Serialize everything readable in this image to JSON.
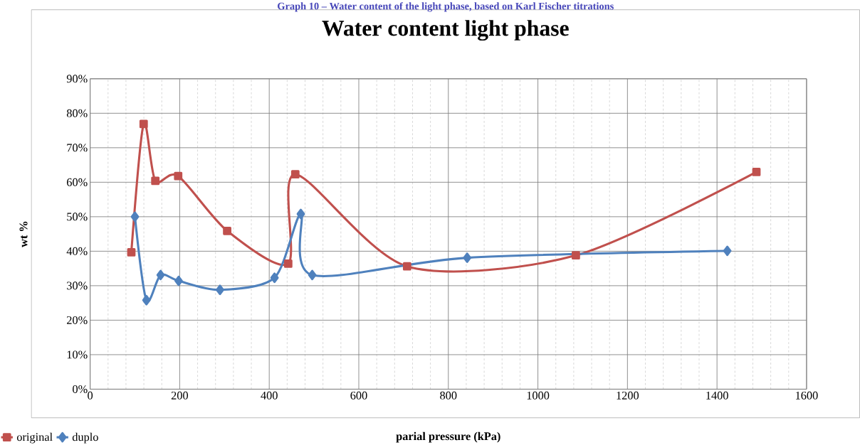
{
  "chart_data": {
    "type": "line",
    "title": "Water content light phase",
    "subtitle": "Graph 10 – Water content of the light phase, based on Karl Fischer titrations",
    "xlabel": "parial pressure (kPa)",
    "ylabel": "wt %",
    "series": [
      {
        "name": "original",
        "color": "#c0504d",
        "marker": "square",
        "x": [
          92,
          119.5,
          145.6,
          196.6,
          306,
          442.4,
          458.2,
          707.9,
          1084.8,
          1488
        ],
        "values": [
          39.7,
          76.9,
          60.4,
          61.8,
          45.9,
          36.4,
          62.3,
          35.6,
          38.8,
          63.0
        ]
      },
      {
        "name": "duplo",
        "color": "#4f81bd",
        "marker": "diamond",
        "x": [
          100,
          125.7,
          157.4,
          197.7,
          290,
          411.8,
          470.5,
          496,
          842,
          1423
        ],
        "values": [
          50.0,
          25.8,
          33.1,
          31.4,
          28.8,
          32.3,
          50.8,
          33.1,
          38.1,
          40.1
        ]
      }
    ],
    "xlim": [
      0,
      1600
    ],
    "xticks": [
      0,
      200,
      400,
      600,
      800,
      1000,
      1200,
      1400,
      1600
    ],
    "ylim": [
      0,
      90
    ],
    "yticks": [
      {
        "value": 0,
        "label": "0%"
      },
      {
        "value": 10,
        "label": "10%"
      },
      {
        "value": 20,
        "label": "20%"
      },
      {
        "value": 30,
        "label": "30%"
      },
      {
        "value": 40,
        "label": "40%"
      },
      {
        "value": 50,
        "label": "50%"
      },
      {
        "value": 60,
        "label": "60%"
      },
      {
        "value": 70,
        "label": "70%"
      },
      {
        "value": 80,
        "label": "80%"
      },
      {
        "value": 90,
        "label": "90%"
      }
    ],
    "grid": true,
    "legend": "bottom left",
    "line_style": "solid"
  }
}
